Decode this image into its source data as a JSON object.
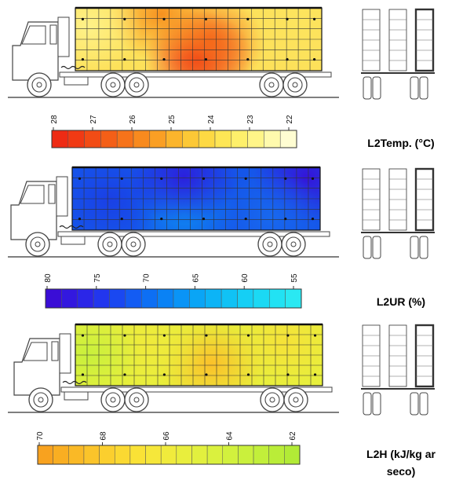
{
  "panels": [
    {
      "id": "temperature",
      "title": "L2Temp. (°C)",
      "scale_ticks": [
        "28",
        "27",
        "26",
        "25",
        "24",
        "23",
        "22"
      ],
      "scale_colors": [
        "#ee2b14",
        "#f03a14",
        "#f24c15",
        "#f45f17",
        "#f6731a",
        "#f88a1e",
        "#fa9f24",
        "#fbb52c",
        "#fcc836",
        "#fdd943",
        "#fee655",
        "#fef06b",
        "#fff588",
        "#fffaad",
        "#fffdd2"
      ],
      "heatmap": {
        "base": "#fde15a",
        "hot_spots": [
          {
            "at": [
              0.5,
              0.8
            ],
            "color": "#ee2a13"
          },
          {
            "at": [
              0.55,
              0.55
            ],
            "color": "#f56a1a"
          },
          {
            "at": [
              0.35,
              0.1
            ],
            "color": "#f7911f"
          },
          {
            "at": [
              0.05,
              0.3
            ],
            "color": "#fef28a"
          },
          {
            "at": [
              0.9,
              0.2
            ],
            "color": "#fde45e"
          }
        ]
      }
    },
    {
      "id": "humidity",
      "title": "L2UR (%)",
      "scale_ticks": [
        "80",
        "75",
        "70",
        "65",
        "60",
        "55"
      ],
      "scale_colors": [
        "#3a0dd6",
        "#3318df",
        "#2b26e8",
        "#2236ee",
        "#1a48f1",
        "#135cf3",
        "#0d6ff4",
        "#0a82f5",
        "#0a94f6",
        "#0aa5f6",
        "#0cb4f6",
        "#10c2f5",
        "#15cff5",
        "#1bd9f4",
        "#22e2f3",
        "#2ae8f2"
      ],
      "heatmap": {
        "base": "#1556ea",
        "hot_spots": [
          {
            "at": [
              0.45,
              0.75
            ],
            "color": "#0e86f1"
          },
          {
            "at": [
              0.15,
              0.5
            ],
            "color": "#1a40e6"
          },
          {
            "at": [
              0.45,
              0.15
            ],
            "color": "#2b20dd"
          },
          {
            "at": [
              0.95,
              0.15
            ],
            "color": "#3414d9"
          },
          {
            "at": [
              0.8,
              0.8
            ],
            "color": "#1868ee"
          }
        ]
      }
    },
    {
      "id": "enthalpy",
      "title": "L2H (kJ/kg ar seco)",
      "scale_ticks": [
        "70",
        "68",
        "66",
        "64",
        "62"
      ],
      "scale_colors": [
        "#f8a21f",
        "#f9ae22",
        "#fab926",
        "#fbc42a",
        "#fbcf2e",
        "#fbd932",
        "#fae236",
        "#f6e73a",
        "#f0eb3c",
        "#e9ee3d",
        "#e2f03e",
        "#daf13e",
        "#d2f13d",
        "#caf03c",
        "#c2ef3a",
        "#baed38",
        "#b2eb36"
      ],
      "heatmap": {
        "base": "#e7ef3c",
        "hot_spots": [
          {
            "at": [
              0.55,
              0.65
            ],
            "color": "#fbc12a"
          },
          {
            "at": [
              0.3,
              0.35
            ],
            "color": "#f0ea3b"
          },
          {
            "at": [
              0.05,
              0.5
            ],
            "color": "#c8f03c"
          },
          {
            "at": [
              0.85,
              0.3
            ],
            "color": "#f6e238"
          }
        ]
      }
    }
  ]
}
